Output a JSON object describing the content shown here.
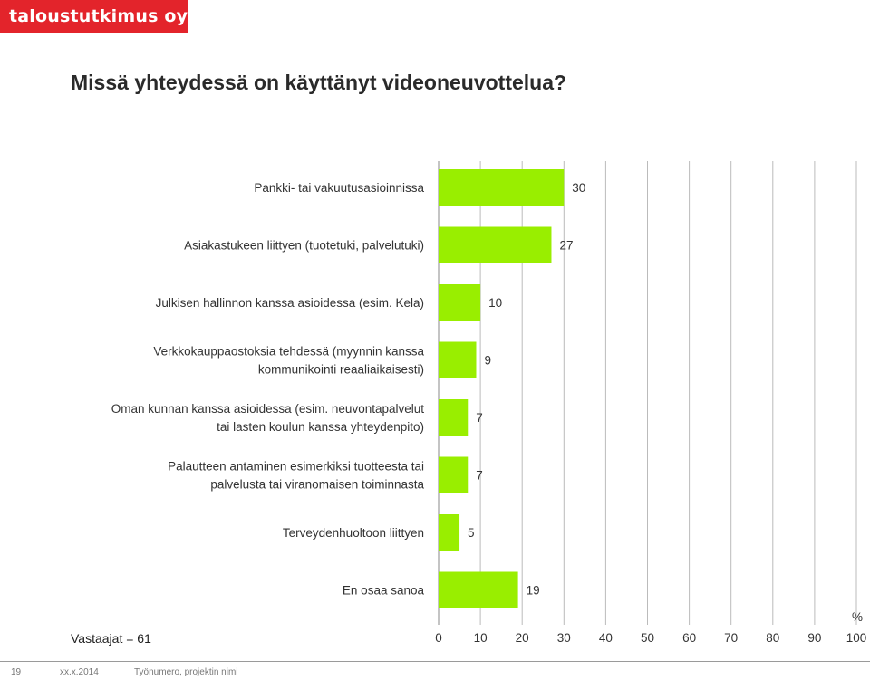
{
  "brand": {
    "logo_text": "taloustutkimus oy"
  },
  "header": {
    "title": "Missä yhteydessä on käyttänyt videoneuvottelua?"
  },
  "chart_data": {
    "type": "bar",
    "orientation": "horizontal",
    "title": "Missä yhteydessä on käyttänyt videoneuvottelua?",
    "categories": [
      [
        "Pankki- tai vakuutusasioinnissa"
      ],
      [
        "Asiakastukeen liittyen (tuotetuki, palvelutuki)"
      ],
      [
        "Julkisen hallinnon kanssa asioidessa (esim. Kela)"
      ],
      [
        "Verkkokauppaostoksia tehdessä (myynnin kanssa",
        "kommunikointi reaaliaikaisesti)"
      ],
      [
        "Oman kunnan kanssa asioidessa (esim. neuvontapalvelut",
        "tai lasten koulun kanssa yhteydenpito)"
      ],
      [
        "Palautteen antaminen esimerkiksi tuotteesta tai",
        "palvelusta tai viranomaisen toiminnasta"
      ],
      [
        "Terveydenhuoltoon liittyen"
      ],
      [
        "En osaa sanoa"
      ]
    ],
    "values": [
      30,
      27,
      10,
      9,
      7,
      7,
      5,
      19
    ],
    "xlim": [
      0,
      100
    ],
    "xticks": [
      0,
      10,
      20,
      30,
      40,
      50,
      60,
      70,
      80,
      90,
      100
    ],
    "xunit": "%",
    "grid": true,
    "bar_color": "#99ee00"
  },
  "note": {
    "respondents": "Vastaajat = 61"
  },
  "footer": {
    "page": "19",
    "date": "xx.x.2014",
    "project": "Työnumero, projektin nimi"
  }
}
